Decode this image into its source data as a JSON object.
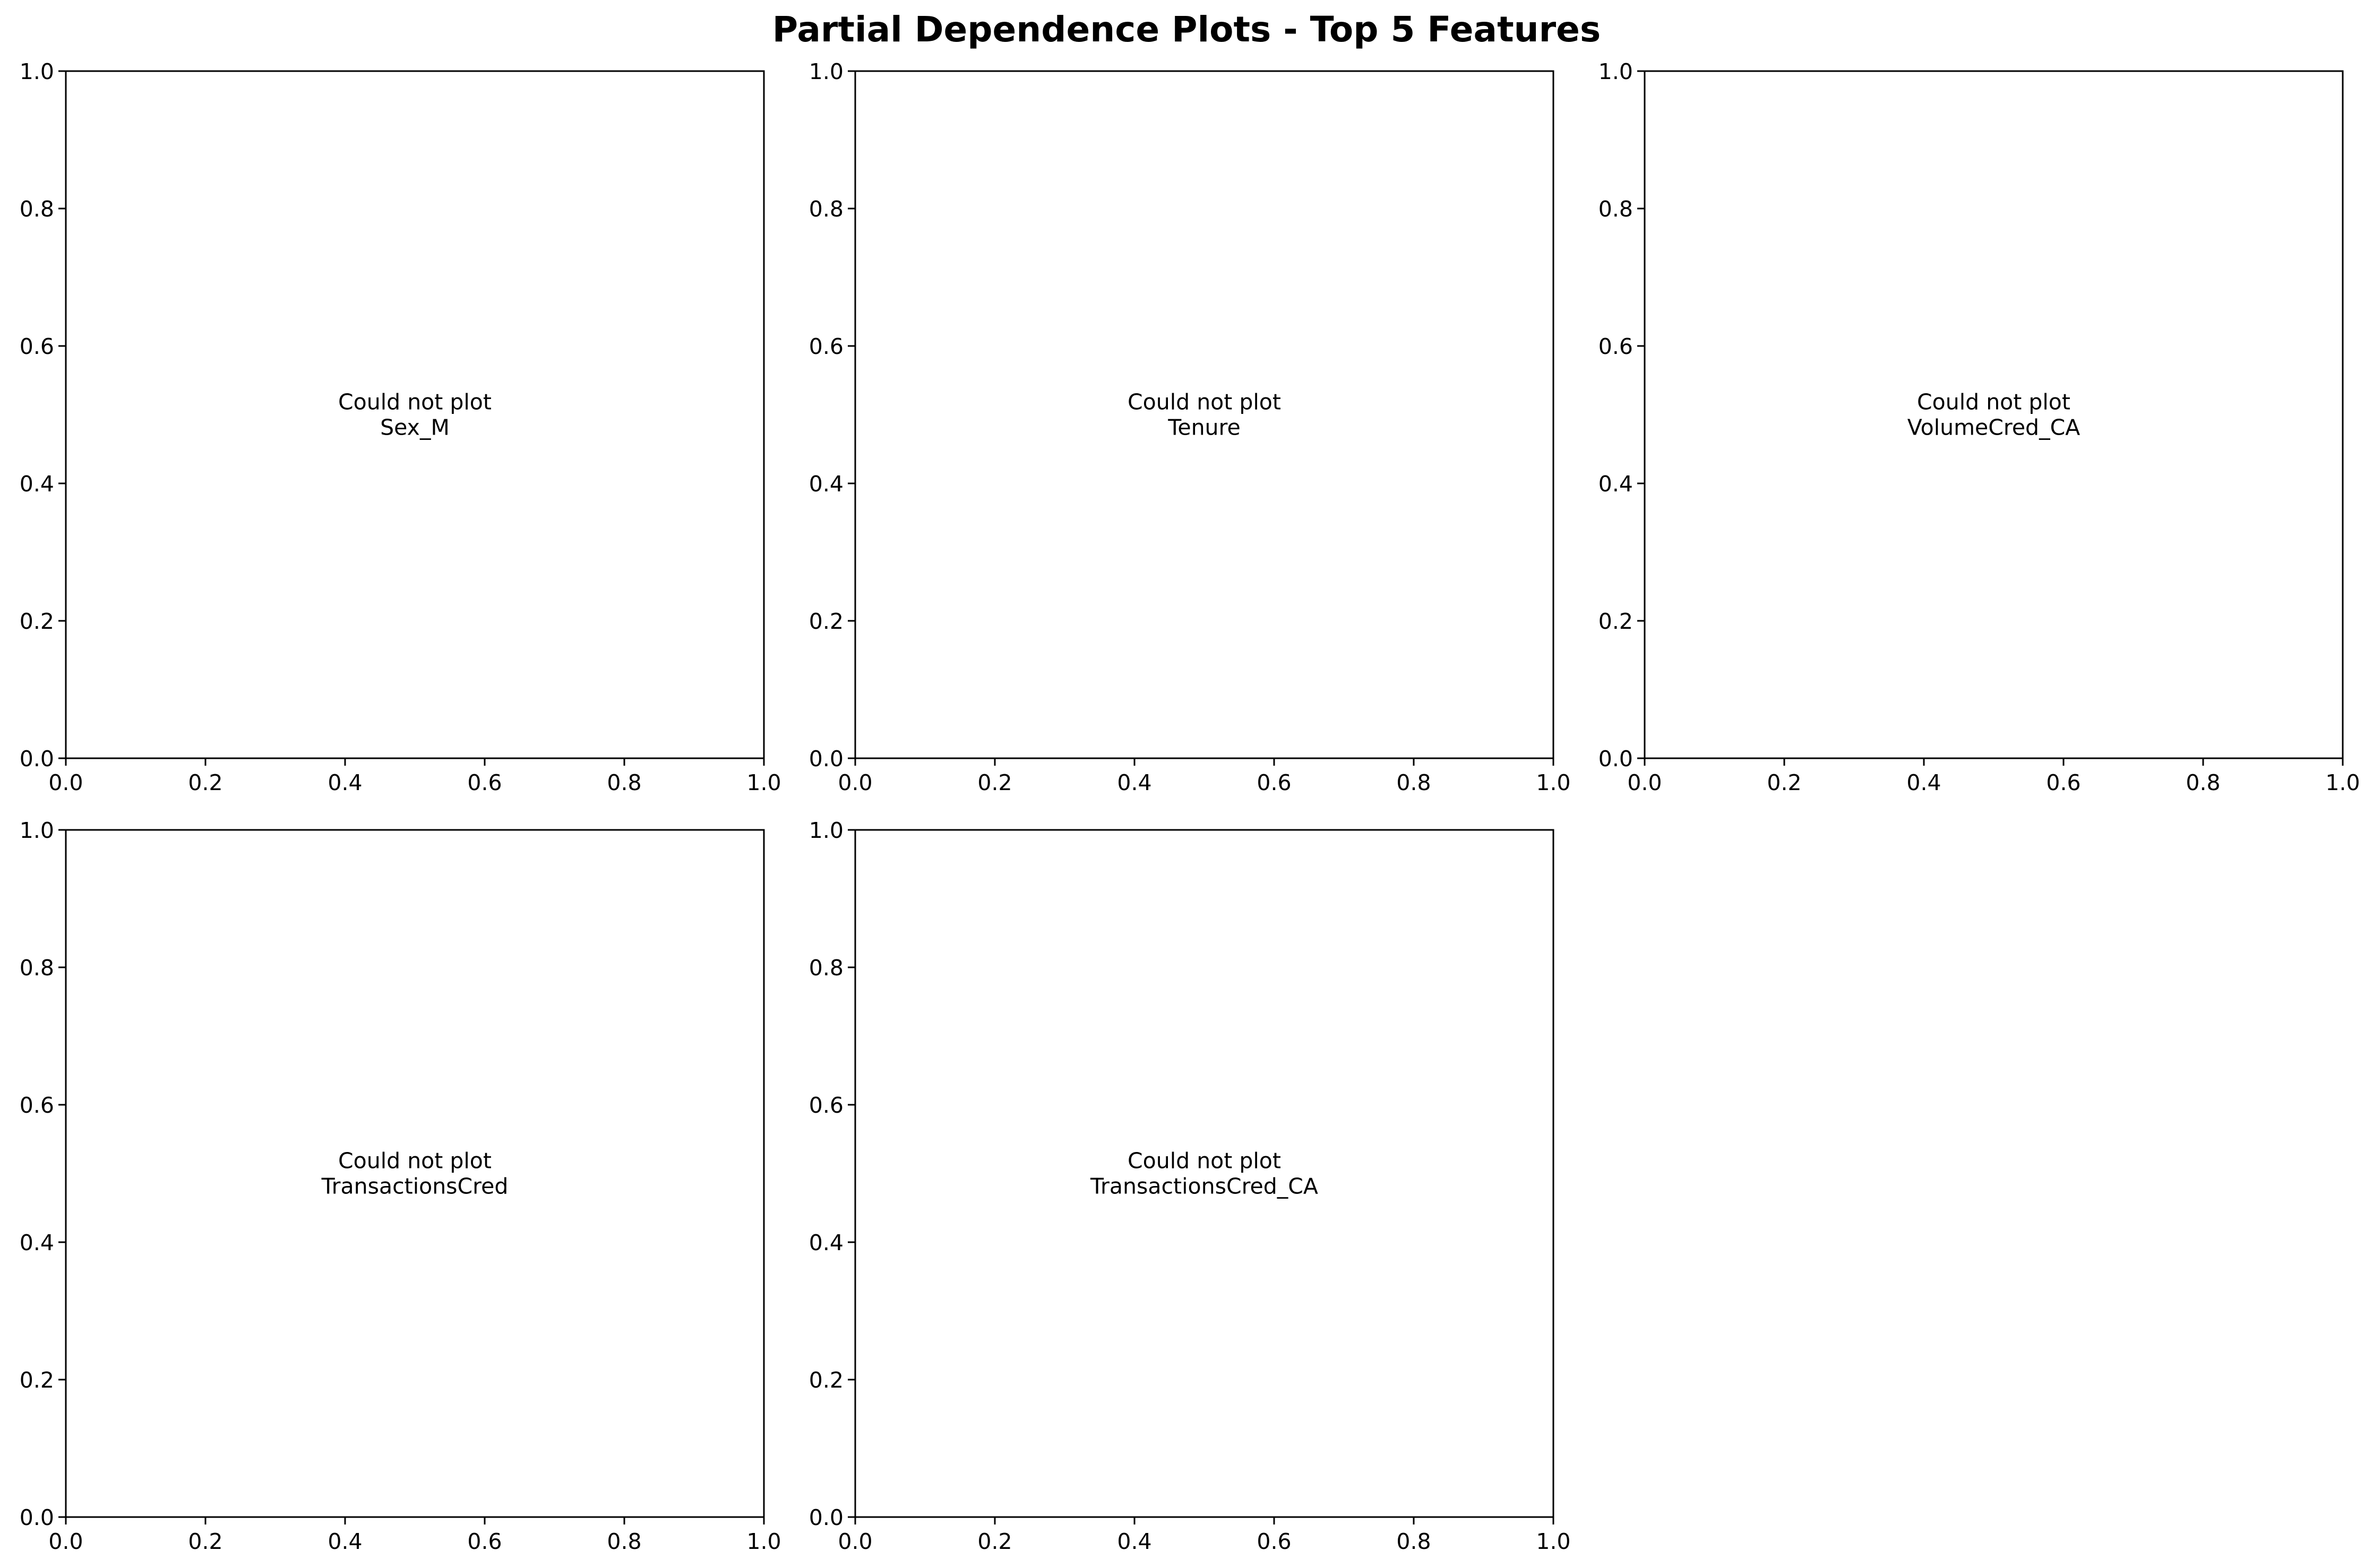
{
  "figure": {
    "title": "Partial Dependence Plots - Top 5 Features"
  },
  "chart_data": [
    {
      "type": "line",
      "feature": "Sex_M",
      "annotation": [
        "Could not plot",
        "Sex_M"
      ],
      "xlim": [
        0,
        1
      ],
      "ylim": [
        0,
        1
      ],
      "xticks": [
        "0.0",
        "0.2",
        "0.4",
        "0.6",
        "0.8",
        "1.0"
      ],
      "yticks": [
        "0.0",
        "0.2",
        "0.4",
        "0.6",
        "0.8",
        "1.0"
      ],
      "series": []
    },
    {
      "type": "line",
      "feature": "Tenure",
      "annotation": [
        "Could not plot",
        "Tenure"
      ],
      "xlim": [
        0,
        1
      ],
      "ylim": [
        0,
        1
      ],
      "xticks": [
        "0.0",
        "0.2",
        "0.4",
        "0.6",
        "0.8",
        "1.0"
      ],
      "yticks": [
        "0.0",
        "0.2",
        "0.4",
        "0.6",
        "0.8",
        "1.0"
      ],
      "series": []
    },
    {
      "type": "line",
      "feature": "VolumeCred_CA",
      "annotation": [
        "Could not plot",
        "VolumeCred_CA"
      ],
      "xlim": [
        0,
        1
      ],
      "ylim": [
        0,
        1
      ],
      "xticks": [
        "0.0",
        "0.2",
        "0.4",
        "0.6",
        "0.8",
        "1.0"
      ],
      "yticks": [
        "0.0",
        "0.2",
        "0.4",
        "0.6",
        "0.8",
        "1.0"
      ],
      "series": []
    },
    {
      "type": "line",
      "feature": "TransactionsCred",
      "annotation": [
        "Could not plot",
        "TransactionsCred"
      ],
      "xlim": [
        0,
        1
      ],
      "ylim": [
        0,
        1
      ],
      "xticks": [
        "0.0",
        "0.2",
        "0.4",
        "0.6",
        "0.8",
        "1.0"
      ],
      "yticks": [
        "0.0",
        "0.2",
        "0.4",
        "0.6",
        "0.8",
        "1.0"
      ],
      "series": []
    },
    {
      "type": "line",
      "feature": "TransactionsCred_CA",
      "annotation": [
        "Could not plot",
        "TransactionsCred_CA"
      ],
      "xlim": [
        0,
        1
      ],
      "ylim": [
        0,
        1
      ],
      "xticks": [
        "0.0",
        "0.2",
        "0.4",
        "0.6",
        "0.8",
        "1.0"
      ],
      "yticks": [
        "0.0",
        "0.2",
        "0.4",
        "0.6",
        "0.8",
        "1.0"
      ],
      "series": []
    }
  ]
}
